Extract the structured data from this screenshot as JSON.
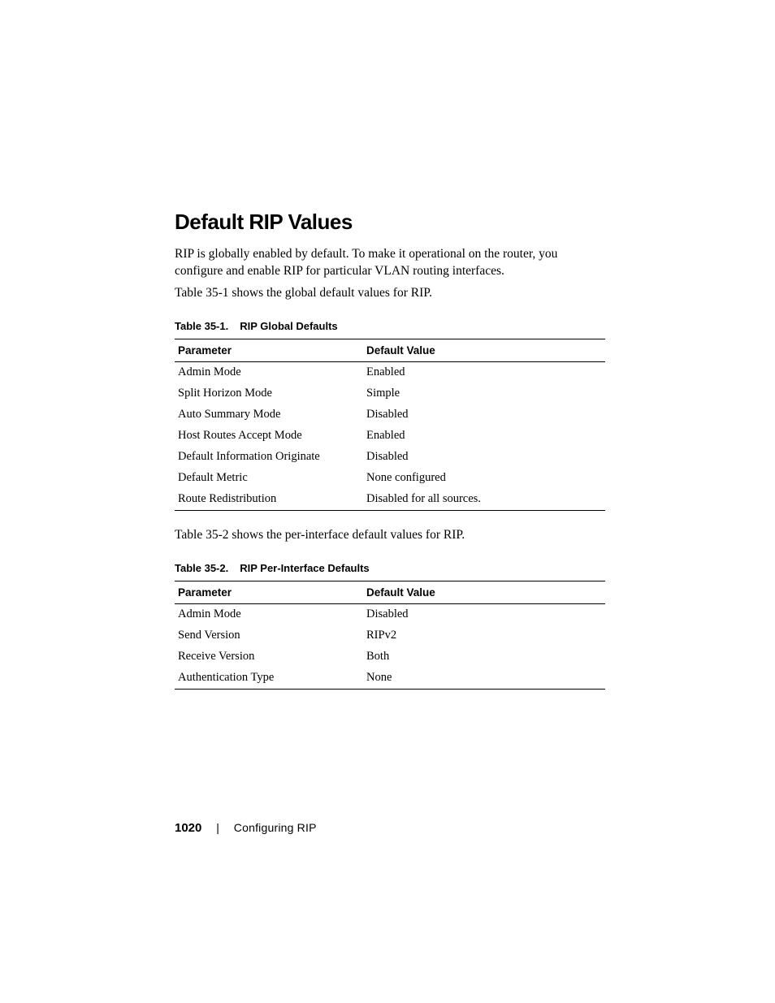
{
  "heading": "Default RIP Values",
  "intro_p1": "RIP is globally enabled by default. To make it operational on the router, you configure and enable RIP for particular VLAN routing interfaces.",
  "intro_p2": "Table 35-1 shows the global default values for RIP.",
  "table1": {
    "caption_label": "Table 35-1.",
    "caption_title": "RIP Global Defaults",
    "col_param": "Parameter",
    "col_value": "Default Value",
    "rows": [
      {
        "param": "Admin Mode",
        "value": "Enabled"
      },
      {
        "param": "Split Horizon Mode",
        "value": "Simple"
      },
      {
        "param": "Auto Summary Mode",
        "value": "Disabled"
      },
      {
        "param": "Host Routes Accept Mode",
        "value": "Enabled"
      },
      {
        "param": "Default Information Originate",
        "value": "Disabled"
      },
      {
        "param": "Default Metric",
        "value": "None configured"
      },
      {
        "param": "Route Redistribution",
        "value": "Disabled for all sources."
      }
    ]
  },
  "mid_text": "Table 35-2 shows the per-interface default values for RIP.",
  "table2": {
    "caption_label": "Table 35-2.",
    "caption_title": "RIP Per-Interface Defaults",
    "col_param": "Parameter",
    "col_value": "Default Value",
    "rows": [
      {
        "param": "Admin Mode",
        "value": "Disabled"
      },
      {
        "param": "Send Version",
        "value": "RIPv2"
      },
      {
        "param": "Receive Version",
        "value": "Both"
      },
      {
        "param": "Authentication Type",
        "value": "None"
      }
    ]
  },
  "footer": {
    "page_number": "1020",
    "divider": "|",
    "section": "Configuring RIP"
  }
}
